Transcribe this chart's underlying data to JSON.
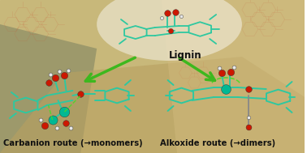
{
  "lignin_label": "Lignin",
  "left_label": "Carbanion route (→monomers)",
  "right_label": "Alkoxide route (→dimers)",
  "fig_width": 3.78,
  "fig_height": 1.89,
  "dpi": 100,
  "arrow_color": "#3db81e",
  "text_color": "#111111",
  "label_fontsize": 7.2,
  "lignin_fontsize": 8.5,
  "teal": "#2ec8a0",
  "red": "#cc1800",
  "white_atom": "#e8e8e8",
  "cyan_big": "#00b894",
  "green_dash": "#44dd22",
  "bg_top": "#d8cba8",
  "bg_mid": "#b8a878",
  "bg_bot": "#a89060"
}
